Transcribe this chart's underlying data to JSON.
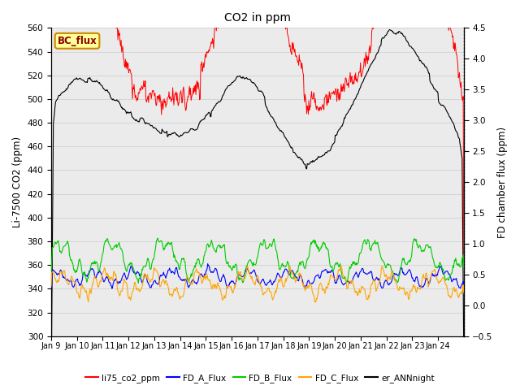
{
  "title": "CO2 in ppm",
  "ylabel_left": "Li-7500 CO2 (ppm)",
  "ylabel_right": "FD chamber flux (ppm)",
  "ylim_left": [
    300,
    560
  ],
  "ylim_right": [
    -0.5,
    4.5
  ],
  "yticks_left": [
    300,
    320,
    340,
    360,
    380,
    400,
    420,
    440,
    460,
    480,
    500,
    520,
    540,
    560
  ],
  "yticks_right": [
    -0.5,
    0.0,
    0.5,
    1.0,
    1.5,
    2.0,
    2.5,
    3.0,
    3.5,
    4.0,
    4.5
  ],
  "xtick_labels": [
    "Jan 9",
    "Jan 10",
    "Jan 11",
    "Jan 12",
    "Jan 13",
    "Jan 14",
    "Jan 15",
    "Jan 16",
    "Jan 17",
    "Jan 18",
    "Jan 19",
    "Jan 20",
    "Jan 21",
    "Jan 22",
    "Jan 23",
    "Jan 24"
  ],
  "colors": {
    "li75_co2_ppm": "#ff0000",
    "FD_A_Flux": "#0000ff",
    "FD_B_Flux": "#00cc00",
    "FD_C_Flux": "#ffa500",
    "er_ANNnight": "#000000"
  },
  "legend_box_color": "#ffff99",
  "legend_box_label": "BC_flux",
  "grid_color": "#d0d0d0",
  "background_color": "#ffffff",
  "figsize": [
    6.4,
    4.8
  ],
  "dpi": 100
}
